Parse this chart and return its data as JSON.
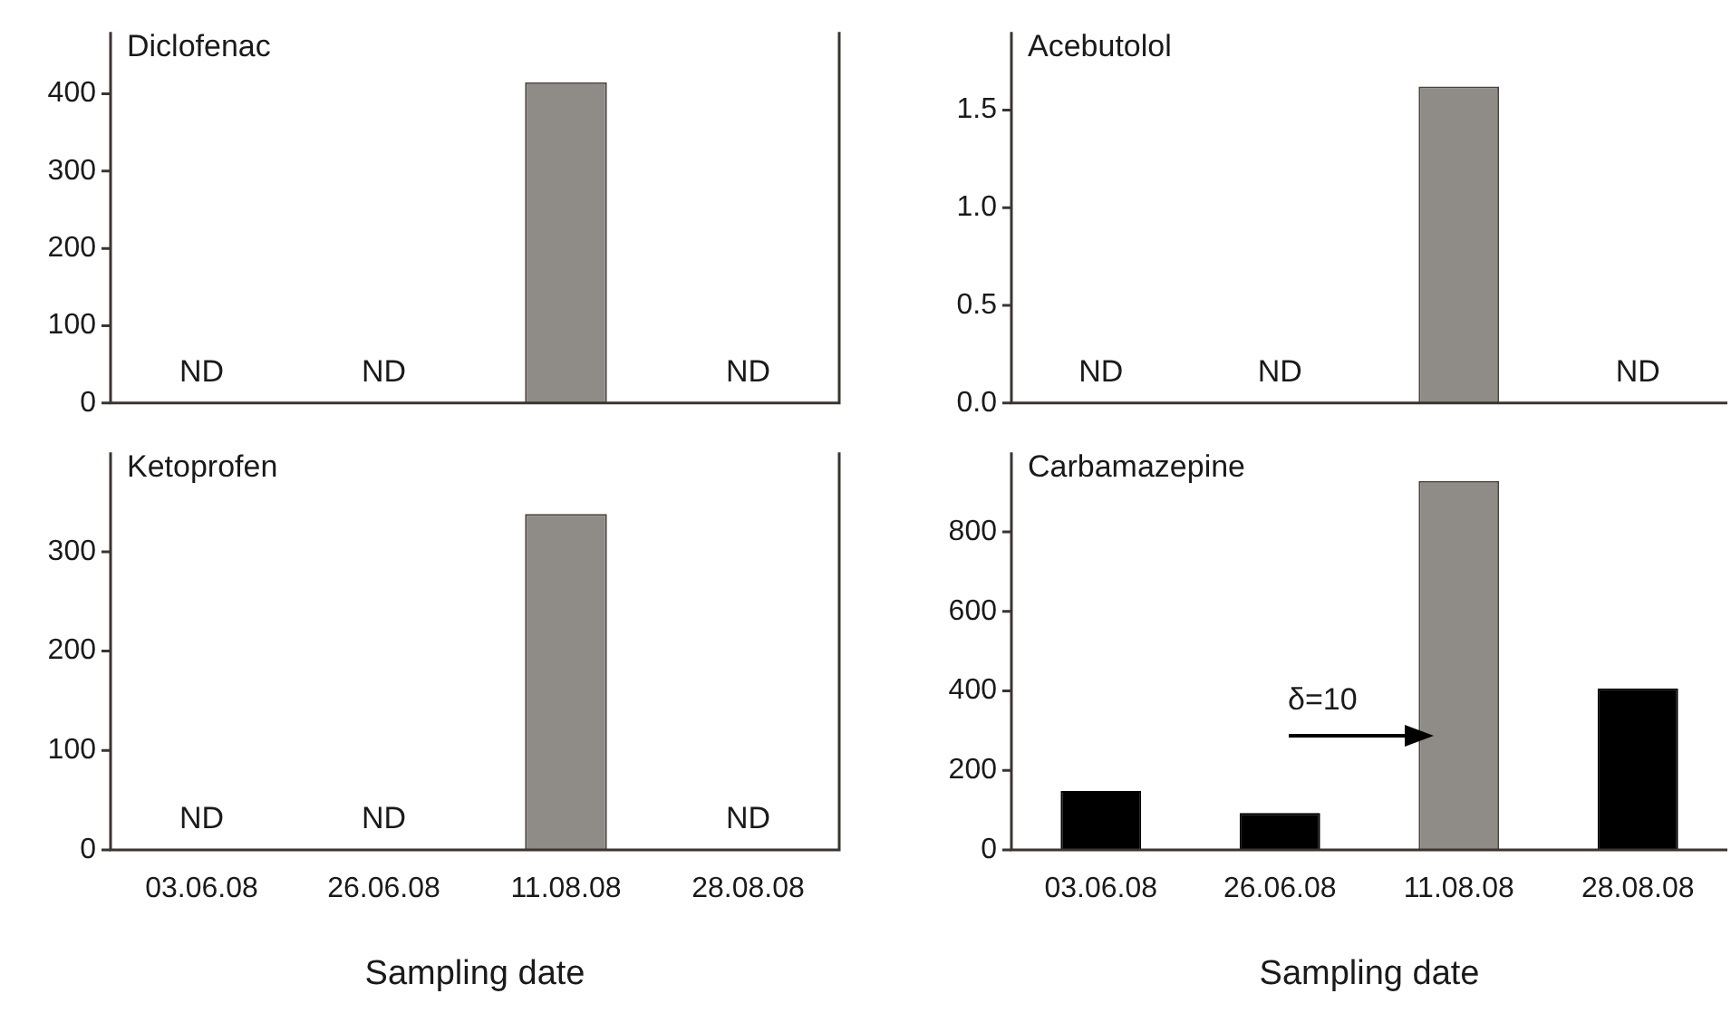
{
  "chart_data": [
    {
      "type": "bar",
      "title": "Diclofenac",
      "categories": [
        "03.06.08",
        "26.06.08",
        "11.08.08",
        "28.08.08"
      ],
      "values": [
        null,
        null,
        415,
        null
      ],
      "value_labels": [
        "ND",
        "ND",
        null,
        "ND"
      ],
      "color": "#8f8b86",
      "ylim": [
        0,
        480
      ],
      "yticks": [
        0,
        100,
        200,
        300,
        400
      ],
      "tick_labels": "y"
    },
    {
      "type": "bar",
      "title": "Acebutolol",
      "categories": [
        "03.06.08",
        "26.06.08",
        "11.08.08",
        "28.08.08"
      ],
      "values": [
        null,
        null,
        1.62,
        null
      ],
      "value_labels": [
        "ND",
        "ND",
        null,
        "ND"
      ],
      "color": "#8f8b86",
      "ylim": [
        0,
        1.9
      ],
      "yticks": [
        {
          "value": 0,
          "label": "0.0"
        },
        0.5,
        {
          "value": 1,
          "label": "1.0"
        },
        1.5
      ],
      "tick_labels": "y"
    },
    {
      "type": "bar",
      "title": "Ketoprofen",
      "categories": [
        "03.06.08",
        "26.06.08",
        "11.08.08",
        "28.08.08"
      ],
      "values": [
        null,
        null,
        338,
        null
      ],
      "value_labels": [
        "ND",
        "ND",
        null,
        "ND"
      ],
      "color": "#8f8b86",
      "ylim": [
        0,
        400
      ],
      "yticks": [
        0,
        100,
        200,
        300
      ],
      "xlabel": "Sampling date"
    },
    {
      "type": "bar",
      "title": "Carbamazepine",
      "categories": [
        "03.06.08",
        "26.06.08",
        "11.08.08",
        "28.08.08"
      ],
      "values": [
        148,
        93,
        928,
        406
      ],
      "colors": [
        "#000000",
        "#000000",
        "#8f8b86",
        "#000000"
      ],
      "ylim": [
        0,
        1000
      ],
      "yticks": [
        0,
        200,
        400,
        600,
        800
      ],
      "xlabel": "Sampling date",
      "annotations": [
        "δ=10"
      ]
    }
  ]
}
